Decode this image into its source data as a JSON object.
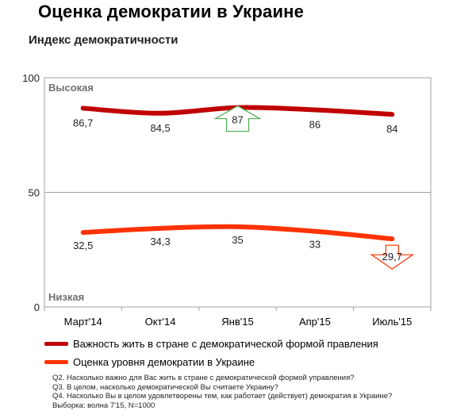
{
  "title": "Оценка демократии в Украине",
  "subtitle": "Индекс демократичности",
  "chart_data": {
    "type": "line",
    "categories": [
      "Март'14",
      "Окт'14",
      "Янв'15",
      "Апр'15",
      "Июль'15"
    ],
    "ylim": [
      0,
      100
    ],
    "yticks": [
      0,
      50,
      100
    ],
    "grid": true,
    "legend_position": "bottom",
    "annotations": {
      "high": "Высокая",
      "low": "Низкая"
    },
    "series": [
      {
        "name": "Важность жить в стране с демократической формой правления",
        "color": "#c00000",
        "values": [
          86.7,
          84.5,
          87,
          86,
          84
        ],
        "labels": [
          "86,7",
          "84,5",
          "87",
          "86",
          "84"
        ],
        "marker": {
          "index": 2,
          "shape": "arrow-up",
          "color": "#4caf50"
        }
      },
      {
        "name": "Оценка уровня демократии в Украине",
        "color": "#ff3300",
        "values": [
          32.5,
          34.3,
          35,
          33,
          29.7
        ],
        "labels": [
          "32,5",
          "34,3",
          "35",
          "33",
          "29,7"
        ],
        "marker": {
          "index": 4,
          "shape": "arrow-down",
          "color": "#ff3300"
        }
      }
    ]
  },
  "notes": [
    "Q2. Насколько важно для Вас жить в стране с демократической формой управления?",
    "Q3. В целом, насколько демократической Вы считаете Украину?",
    "Q4. Насколько Вы в целом удовлетворены тем, как работает (действует) демократия в Украине?",
    "Выборка: волна 7'15, N=1000"
  ]
}
